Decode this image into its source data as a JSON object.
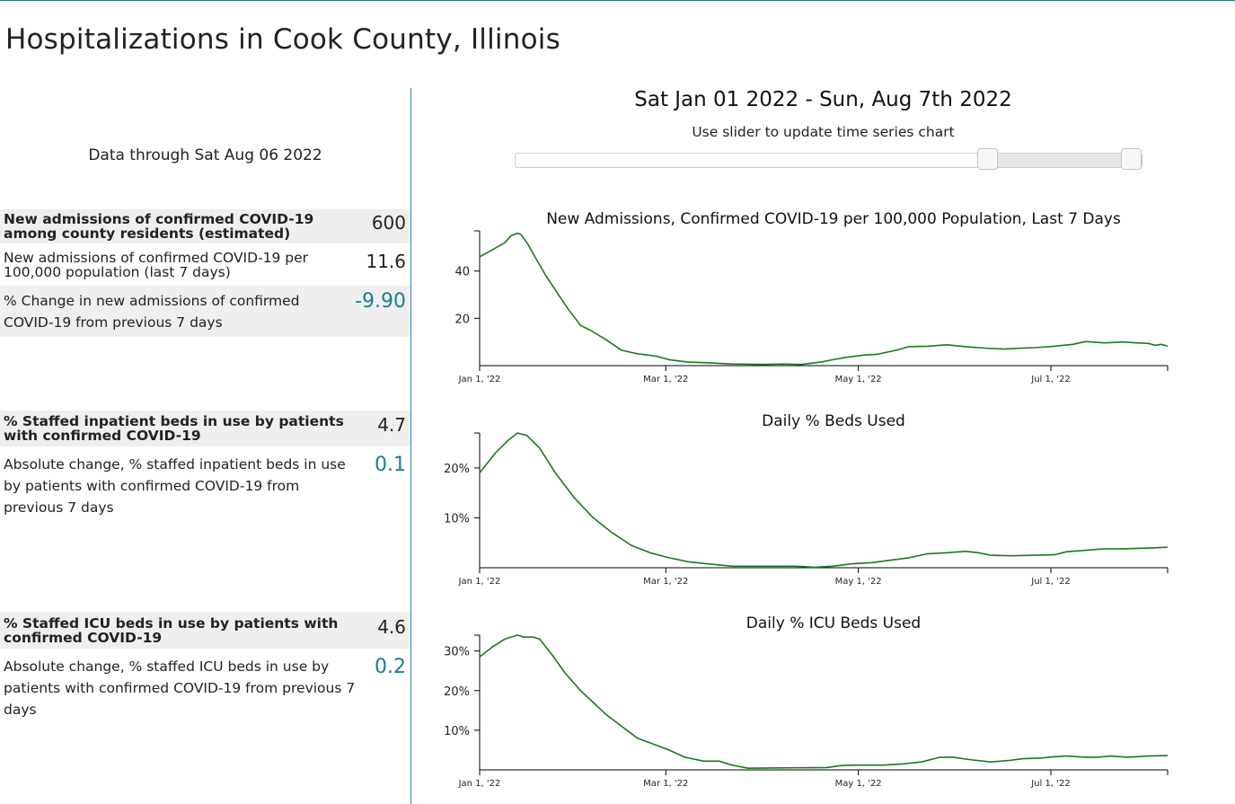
{
  "page": {
    "title": "Hospitalizations in Cook County, Illinois"
  },
  "left_panel": {
    "data_through": "Data through Sat Aug 06 2022",
    "admissions": {
      "label": "New admissions of confirmed COVID-19 among county residents (estimated)",
      "value": "600"
    },
    "admissions_rate": {
      "label": "New admissions of confirmed COVID-19 per 100,000 population (last 7 days)",
      "value": "11.6"
    },
    "admissions_change": {
      "label": "% Change in new admissions of confirmed COVID-19 from previous 7 days",
      "value": "-9.90"
    },
    "inpatient_beds": {
      "label": "% Staffed inpatient beds in use by patients with confirmed COVID-19",
      "value": "4.7"
    },
    "inpatient_beds_change": {
      "label": "Absolute change, % staffed inpatient beds in use by patients with confirmed COVID-19 from previous 7 days",
      "value": "0.1"
    },
    "icu_beds": {
      "label": "% Staffed ICU beds in use by patients with confirmed COVID-19",
      "value": "4.6"
    },
    "icu_beds_change": {
      "label": "Absolute change, % staffed ICU beds in use by patients with confirmed COVID-19 from previous 7 days",
      "value": "0.2"
    }
  },
  "range_header": {
    "title": "Sat Jan 01 2022 - Sun, Aug 7th 2022",
    "slider_caption": "Use slider to update time series chart"
  },
  "slider": {
    "handle_start_fraction": 0.755,
    "handle_end_fraction": 0.985
  },
  "colors": {
    "line": "#1a7a1a",
    "accent": "#1a7f8e",
    "divider": "#3a86b4",
    "shaded_row": "#efefef"
  },
  "chart_data": [
    {
      "type": "line",
      "title": "New Admissions, Confirmed COVID-19 per 100,000 Population, Last 7 Days",
      "xlabel": "",
      "ylabel": "",
      "x_domain_days": [
        0,
        218
      ],
      "x_ticks": [
        {
          "day": 0,
          "label": "Jan 1, '22"
        },
        {
          "day": 59,
          "label": "Mar 1, '22"
        },
        {
          "day": 120,
          "label": "May 1, '22"
        },
        {
          "day": 181,
          "label": "Jul 1, '22"
        }
      ],
      "ylim": [
        0,
        57
      ],
      "y_ticks": [
        {
          "value": 20,
          "label": "20"
        },
        {
          "value": 40,
          "label": "40"
        }
      ],
      "points": [
        [
          0,
          46
        ],
        [
          4,
          49
        ],
        [
          8,
          52
        ],
        [
          10,
          55
        ],
        [
          12,
          56
        ],
        [
          13,
          55.5
        ],
        [
          15,
          52
        ],
        [
          18,
          45
        ],
        [
          21,
          38
        ],
        [
          25,
          30
        ],
        [
          28,
          24
        ],
        [
          32,
          17
        ],
        [
          35,
          15
        ],
        [
          40,
          11
        ],
        [
          45,
          6.5
        ],
        [
          50,
          5
        ],
        [
          56,
          4
        ],
        [
          60,
          2.5
        ],
        [
          66,
          1.5
        ],
        [
          72,
          1.2
        ],
        [
          80,
          0.7
        ],
        [
          90,
          0.5
        ],
        [
          96,
          0.7
        ],
        [
          102,
          0.5
        ],
        [
          108,
          1.5
        ],
        [
          112,
          2.5
        ],
        [
          116,
          3.5
        ],
        [
          122,
          4.5
        ],
        [
          126,
          4.8
        ],
        [
          132,
          6.5
        ],
        [
          136,
          8
        ],
        [
          142,
          8.2
        ],
        [
          148,
          8.8
        ],
        [
          154,
          8
        ],
        [
          160,
          7.4
        ],
        [
          166,
          7
        ],
        [
          172,
          7.4
        ],
        [
          176,
          7.6
        ],
        [
          182,
          8.2
        ],
        [
          188,
          9
        ],
        [
          192,
          10.2
        ],
        [
          198,
          9.6
        ],
        [
          204,
          10
        ],
        [
          208,
          9.6
        ],
        [
          212,
          9.4
        ],
        [
          214,
          8.6
        ],
        [
          216,
          9
        ],
        [
          218,
          8.2
        ]
      ]
    },
    {
      "type": "line",
      "title": "Daily % Beds Used",
      "xlabel": "",
      "ylabel": "",
      "x_domain_days": [
        0,
        218
      ],
      "x_ticks": [
        {
          "day": 0,
          "label": "Jan 1, '22"
        },
        {
          "day": 59,
          "label": "Mar 1, '22"
        },
        {
          "day": 120,
          "label": "May 1, '22"
        },
        {
          "day": 181,
          "label": "Jul 1, '22"
        }
      ],
      "ylim": [
        0,
        27
      ],
      "y_ticks": [
        {
          "value": 10,
          "label": "10%"
        },
        {
          "value": 20,
          "label": "20%"
        }
      ],
      "points": [
        [
          0,
          19
        ],
        [
          5,
          23
        ],
        [
          9,
          25.5
        ],
        [
          12,
          27
        ],
        [
          15,
          26.5
        ],
        [
          19,
          24
        ],
        [
          24,
          19
        ],
        [
          30,
          14
        ],
        [
          36,
          10
        ],
        [
          42,
          7
        ],
        [
          48,
          4.5
        ],
        [
          54,
          3
        ],
        [
          60,
          2
        ],
        [
          66,
          1.2
        ],
        [
          72,
          0.8
        ],
        [
          80,
          0.3
        ],
        [
          90,
          0.3
        ],
        [
          100,
          0.3
        ],
        [
          106,
          0.1
        ],
        [
          112,
          0.3
        ],
        [
          118,
          0.8
        ],
        [
          124,
          1
        ],
        [
          130,
          1.5
        ],
        [
          136,
          2
        ],
        [
          142,
          2.8
        ],
        [
          148,
          3
        ],
        [
          154,
          3.3
        ],
        [
          158,
          3
        ],
        [
          162,
          2.5
        ],
        [
          168,
          2.4
        ],
        [
          176,
          2.5
        ],
        [
          182,
          2.6
        ],
        [
          186,
          3.2
        ],
        [
          192,
          3.5
        ],
        [
          198,
          3.8
        ],
        [
          204,
          3.8
        ],
        [
          210,
          3.9
        ],
        [
          214,
          4
        ],
        [
          218,
          4.1
        ]
      ]
    },
    {
      "type": "line",
      "title": "Daily % ICU Beds Used",
      "xlabel": "",
      "ylabel": "",
      "x_domain_days": [
        0,
        218
      ],
      "x_ticks": [
        {
          "day": 0,
          "label": "Jan 1, '22"
        },
        {
          "day": 59,
          "label": "Mar 1, '22"
        },
        {
          "day": 120,
          "label": "May 1, '22"
        },
        {
          "day": 181,
          "label": "Jul 1, '22"
        }
      ],
      "ylim": [
        0,
        34
      ],
      "y_ticks": [
        {
          "value": 10,
          "label": "10%"
        },
        {
          "value": 20,
          "label": "20%"
        },
        {
          "value": 30,
          "label": "30%"
        }
      ],
      "points": [
        [
          0,
          28.5
        ],
        [
          4,
          31
        ],
        [
          8,
          33
        ],
        [
          12,
          34
        ],
        [
          14,
          33.5
        ],
        [
          17,
          33.5
        ],
        [
          19,
          33
        ],
        [
          23,
          29
        ],
        [
          27,
          24.5
        ],
        [
          32,
          20
        ],
        [
          36,
          17
        ],
        [
          40,
          14
        ],
        [
          45,
          11
        ],
        [
          50,
          8
        ],
        [
          55,
          6.5
        ],
        [
          60,
          5
        ],
        [
          65,
          3.2
        ],
        [
          71,
          2.2
        ],
        [
          76,
          2.2
        ],
        [
          80,
          1.2
        ],
        [
          85,
          0.4
        ],
        [
          95,
          0.5
        ],
        [
          110,
          0.6
        ],
        [
          115,
          1.1
        ],
        [
          120,
          1.2
        ],
        [
          128,
          1.2
        ],
        [
          134,
          1.5
        ],
        [
          140,
          2
        ],
        [
          146,
          3.2
        ],
        [
          150,
          3.2
        ],
        [
          155,
          2.6
        ],
        [
          162,
          2
        ],
        [
          168,
          2.4
        ],
        [
          172,
          2.8
        ],
        [
          178,
          3
        ],
        [
          182,
          3.3
        ],
        [
          186,
          3.5
        ],
        [
          192,
          3.2
        ],
        [
          196,
          3.2
        ],
        [
          200,
          3.5
        ],
        [
          205,
          3.2
        ],
        [
          212,
          3.5
        ],
        [
          218,
          3.6
        ]
      ]
    }
  ]
}
